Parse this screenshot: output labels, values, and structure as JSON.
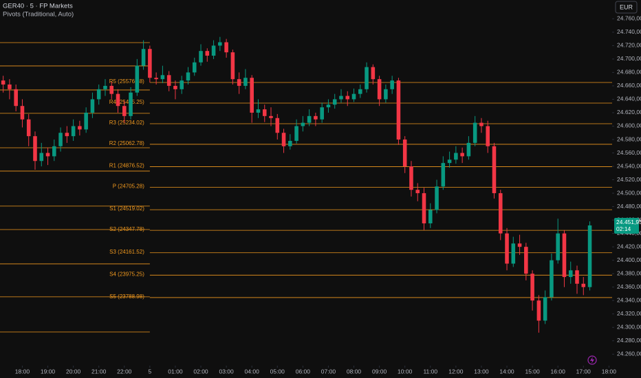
{
  "chart_data": {
    "type": "candlestick",
    "title": "GER40 · 5 · FP Markets",
    "subtitle": "Pivots (Traditional, Auto)",
    "currency": "EUR",
    "up_color": "#089981",
    "down_color": "#f23645",
    "x": [
      1,
      2,
      3,
      4,
      5,
      6,
      7,
      8,
      9,
      10,
      11,
      12,
      13,
      14,
      15,
      16,
      17,
      18,
      19,
      20,
      21,
      22,
      23,
      24,
      25,
      26,
      27,
      28,
      29,
      30,
      31,
      32,
      33,
      34,
      35,
      36,
      37,
      38,
      39,
      40,
      41,
      42,
      43,
      44,
      45,
      46,
      47,
      48,
      49,
      50,
      51,
      52,
      53,
      54,
      55,
      56,
      57,
      58,
      59,
      60,
      61,
      62,
      63,
      64,
      65,
      66,
      67,
      68,
      69,
      70,
      71,
      72,
      73,
      74,
      75,
      76,
      77,
      78,
      79,
      80,
      81,
      82,
      83,
      84,
      85,
      86,
      87,
      88,
      89,
      90,
      91,
      92,
      93
    ],
    "open": [
      24668,
      24662,
      24655,
      24630,
      24610,
      24585,
      24548,
      24560,
      24555,
      24570,
      24590,
      24585,
      24600,
      24595,
      24620,
      24640,
      24655,
      24660,
      24648,
      24630,
      24615,
      24650,
      24690,
      24715,
      24672,
      24670,
      24676,
      24660,
      24655,
      24668,
      24680,
      24695,
      24712,
      24705,
      24720,
      24725,
      24710,
      24670,
      24660,
      24672,
      24620,
      24625,
      24615,
      24612,
      24590,
      24570,
      24578,
      24600,
      24605,
      24615,
      24610,
      24628,
      24632,
      24640,
      24645,
      24640,
      24648,
      24655,
      24688,
      24670,
      24640,
      24655,
      24668,
      24580,
      24540,
      24505,
      24500,
      24455,
      24475,
      24510,
      24545,
      24550,
      24560,
      24555,
      24575,
      24605,
      24600,
      24570,
      24500,
      24440,
      24395,
      24425,
      24420,
      24380,
      24340,
      24310,
      24345,
      24400,
      24440,
      24375,
      24385,
      24365,
      24360
    ],
    "high": [
      24675,
      24670,
      24662,
      24640,
      24618,
      24592,
      24575,
      24568,
      24580,
      24598,
      24600,
      24610,
      24608,
      24628,
      24650,
      24662,
      24670,
      24666,
      24655,
      24638,
      24658,
      24700,
      24728,
      24720,
      24680,
      24690,
      24682,
      24668,
      24675,
      24688,
      24702,
      24722,
      24716,
      24728,
      24733,
      24730,
      24714,
      24680,
      24685,
      24676,
      24640,
      24632,
      24628,
      24618,
      24596,
      24588,
      24610,
      24615,
      24625,
      24620,
      24635,
      24640,
      24648,
      24655,
      24652,
      24656,
      24662,
      24695,
      24692,
      24675,
      24662,
      24675,
      24672,
      24585,
      24548,
      24515,
      24508,
      24485,
      24520,
      24555,
      24562,
      24570,
      24568,
      24585,
      24615,
      24612,
      24608,
      24575,
      24505,
      24448,
      24435,
      24438,
      24426,
      24385,
      24348,
      24355,
      24410,
      24462,
      24445,
      24398,
      24392,
      24375,
      24458
    ],
    "low": [
      24650,
      24640,
      24622,
      24598,
      24570,
      24535,
      24540,
      24542,
      24548,
      24562,
      24575,
      24578,
      24586,
      24590,
      24612,
      24632,
      24645,
      24640,
      24620,
      24605,
      24610,
      24645,
      24684,
      24665,
      24662,
      24664,
      24652,
      24640,
      24648,
      24662,
      24675,
      24690,
      24696,
      24700,
      24712,
      24702,
      24662,
      24648,
      24655,
      24605,
      24612,
      24606,
      24600,
      24580,
      24560,
      24565,
      24574,
      24592,
      24600,
      24600,
      24605,
      24620,
      24626,
      24635,
      24630,
      24636,
      24642,
      24650,
      24662,
      24630,
      24635,
      24648,
      24572,
      24530,
      24495,
      24488,
      24445,
      24448,
      24470,
      24505,
      24538,
      24544,
      24545,
      24550,
      24570,
      24590,
      24560,
      24492,
      24430,
      24385,
      24390,
      24408,
      24370,
      24325,
      24292,
      24305,
      24340,
      24395,
      24360,
      24365,
      24350,
      24348,
      24355
    ],
    "close": [
      24662,
      24655,
      24630,
      24610,
      24585,
      24548,
      24560,
      24555,
      24570,
      24590,
      24585,
      24600,
      24595,
      24620,
      24640,
      24655,
      24660,
      24648,
      24630,
      24615,
      24650,
      24690,
      24715,
      24672,
      24670,
      24676,
      24660,
      24655,
      24668,
      24680,
      24695,
      24712,
      24705,
      24720,
      24725,
      24710,
      24670,
      24660,
      24672,
      24620,
      24625,
      24615,
      24612,
      24590,
      24570,
      24578,
      24600,
      24605,
      24615,
      24610,
      24628,
      24632,
      24640,
      24645,
      24640,
      24648,
      24655,
      24688,
      24670,
      24640,
      24655,
      24668,
      24580,
      24540,
      24505,
      24500,
      24455,
      24475,
      24510,
      24545,
      24550,
      24560,
      24555,
      24575,
      24605,
      24600,
      24570,
      24500,
      24440,
      24395,
      24425,
      24420,
      24380,
      24340,
      24310,
      24345,
      24400,
      24440,
      24375,
      24385,
      24365,
      24360,
      24451.95
    ],
    "xlim": [
      0.5,
      96.5
    ],
    "xticks": [
      {
        "value": 4,
        "label": "18:00"
      },
      {
        "value": 8,
        "label": "19:00"
      },
      {
        "value": 12,
        "label": "20:00"
      },
      {
        "value": 16,
        "label": "21:00"
      },
      {
        "value": 20,
        "label": "22:00"
      },
      {
        "value": 24,
        "label": "5"
      },
      {
        "value": 28,
        "label": "01:00"
      },
      {
        "value": 32,
        "label": "02:00"
      },
      {
        "value": 36,
        "label": "03:00"
      },
      {
        "value": 40,
        "label": "04:00"
      },
      {
        "value": 44,
        "label": "05:00"
      },
      {
        "value": 48,
        "label": "06:00"
      },
      {
        "value": 52,
        "label": "07:00"
      },
      {
        "value": 56,
        "label": "08:00"
      },
      {
        "value": 60,
        "label": "09:00"
      },
      {
        "value": 64,
        "label": "10:00"
      },
      {
        "value": 68,
        "label": "11:00"
      },
      {
        "value": 72,
        "label": "12:00"
      },
      {
        "value": 76,
        "label": "13:00"
      },
      {
        "value": 80,
        "label": "14:00"
      },
      {
        "value": 84,
        "label": "15:00"
      },
      {
        "value": 88,
        "label": "16:00"
      },
      {
        "value": 92,
        "label": "17:00"
      },
      {
        "value": 96,
        "label": "18:00"
      }
    ],
    "ylim": [
      24247,
      24788
    ],
    "yticks": [
      {
        "value": 24260,
        "label": "24.260,00"
      },
      {
        "value": 24280,
        "label": "24.280,00"
      },
      {
        "value": 24300,
        "label": "24.300,00"
      },
      {
        "value": 24320,
        "label": "24.320,00"
      },
      {
        "value": 24340,
        "label": "24.340,00"
      },
      {
        "value": 24360,
        "label": "24.360,00"
      },
      {
        "value": 24380,
        "label": "24.380,00"
      },
      {
        "value": 24400,
        "label": "24.400,00"
      },
      {
        "value": 24420,
        "label": "24.420,00"
      },
      {
        "value": 24440,
        "label": "24.440,00"
      },
      {
        "value": 24460,
        "label": "24.460,00"
      },
      {
        "value": 24480,
        "label": "24.480,00"
      },
      {
        "value": 24500,
        "label": "24.500,00"
      },
      {
        "value": 24520,
        "label": "24.520,00"
      },
      {
        "value": 24540,
        "label": "24.540,00"
      },
      {
        "value": 24560,
        "label": "24.560,00"
      },
      {
        "value": 24580,
        "label": "24.580,00"
      },
      {
        "value": 24600,
        "label": "24.600,00"
      },
      {
        "value": 24620,
        "label": "24.620,00"
      },
      {
        "value": 24640,
        "label": "24.640,00"
      },
      {
        "value": 24660,
        "label": "24.660,00"
      },
      {
        "value": 24680,
        "label": "24.680,00"
      },
      {
        "value": 24700,
        "label": "24.700,00"
      },
      {
        "value": 24720,
        "label": "24.720,00"
      },
      {
        "value": 24740,
        "label": "24.740,00"
      },
      {
        "value": 24760,
        "label": "24.760,00"
      }
    ],
    "last_price": {
      "value": 24451.95,
      "label": "24.451,95"
    },
    "countdown": "02:14",
    "pivots": {
      "color": "#f29a1f",
      "ylim": [
        23246,
        26262
      ],
      "split": 24,
      "levels": [
        {
          "value": 25576.48,
          "label": "R5 (25576.48)"
        },
        {
          "value": 25405.25,
          "label": "R4 (25405.25)"
        },
        {
          "value": 25234.02,
          "label": "R3 (25234.02)"
        },
        {
          "value": 25062.78,
          "label": "R2 (25062.78)"
        },
        {
          "value": 24876.52,
          "label": "R1 (24876.52)"
        },
        {
          "value": 24705.28,
          "label": "P (24705.28)"
        },
        {
          "value": 24519.02,
          "label": "S1 (24519.02)"
        },
        {
          "value": 24347.78,
          "label": "S2 (24347.78)"
        },
        {
          "value": 24161.52,
          "label": "S3 (24161.52)"
        },
        {
          "value": 23975.25,
          "label": "S4 (23975.25)"
        },
        {
          "value": 23788.98,
          "label": "S5 (23788.98)"
        }
      ],
      "previous_levels": [
        25908,
        25714,
        25514,
        25320,
        25034,
        24840,
        24549,
        24354,
        24069,
        23795,
        23503
      ]
    }
  }
}
